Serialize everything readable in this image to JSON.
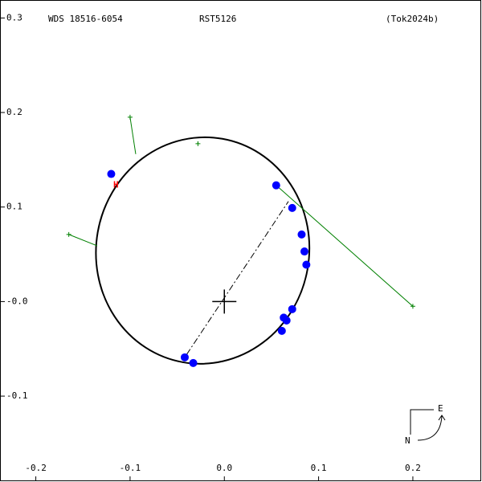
{
  "chart_data": {
    "type": "orbit",
    "labels": [
      "WDS 18516-6054",
      "RST5126",
      "(Tok2024b)"
    ],
    "xlim": [
      -0.238,
      0.2725
    ],
    "ylim": [
      -0.19,
      0.319
    ],
    "xticks": [
      -0.2,
      -0.1,
      {
        "value": 0,
        "label": "0.0"
      },
      0.1,
      0.2
    ],
    "yticks": [
      0.3,
      0.2,
      0.1,
      {
        "value": 0,
        "label": "-0.0"
      },
      -0.1
    ],
    "orbit": {
      "cx": -0.023,
      "cy": 0.054,
      "rx": 0.113,
      "ry": 0.12,
      "angle": 10
    },
    "node_line": {
      "x": [
        -0.04,
        0.068
      ],
      "y": [
        -0.056,
        0.106
      ]
    },
    "points": {
      "color": "#0000ff",
      "x": [
        -0.12,
        0.055,
        0.072,
        0.082,
        0.085,
        0.087,
        0.072,
        0.063,
        0.066,
        0.061,
        -0.042,
        -0.033
      ],
      "y": [
        0.135,
        0.123,
        0.099,
        0.071,
        0.053,
        0.039,
        -0.008,
        -0.017,
        -0.02,
        -0.031,
        -0.059,
        -0.065
      ]
    },
    "outliers": {
      "color": "#008000",
      "x": [
        -0.1,
        -0.028,
        -0.165,
        0.2
      ],
      "y": [
        0.195,
        0.167,
        0.071,
        -0.005
      ],
      "ox": [
        -0.094,
        -0.028,
        -0.135,
        0.055
      ],
      "oy": [
        0.156,
        0.169,
        0.059,
        0.123
      ]
    },
    "hipparcos": {
      "label": "H",
      "x": -0.115,
      "y": 0.123,
      "color": "#ff0000"
    },
    "compass": {
      "east": "E",
      "north": "N"
    }
  }
}
